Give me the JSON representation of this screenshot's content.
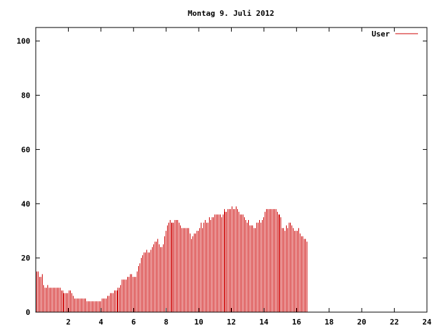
{
  "chart_data": {
    "type": "bar",
    "title": "Montag 9. Juli 2012",
    "xlabel": "",
    "ylabel": "",
    "xlim": [
      0,
      24
    ],
    "ylim": [
      0,
      105
    ],
    "x_ticks": [
      "2",
      "4",
      "6",
      "8",
      "10",
      "12",
      "14",
      "16",
      "18",
      "20",
      "22",
      "24"
    ],
    "y_ticks": [
      "0",
      "20",
      "40",
      "60",
      "80",
      "100"
    ],
    "grid": false,
    "legend_position": "top-right",
    "series": [
      {
        "name": "User",
        "color": "#cc0000",
        "x_step_hours": 0.0833,
        "values": [
          15,
          15,
          13,
          13,
          14,
          10,
          9,
          9,
          10,
          9,
          9,
          9,
          9,
          9,
          9,
          9,
          9,
          9,
          8,
          8,
          7,
          7,
          7,
          7,
          8,
          8,
          7,
          6,
          5,
          5,
          5,
          5,
          5,
          5,
          5,
          5,
          5,
          4,
          4,
          4,
          4,
          4,
          4,
          4,
          4,
          4,
          4,
          4,
          5,
          5,
          5,
          5,
          6,
          6,
          7,
          7,
          7,
          8,
          8,
          8,
          9,
          9,
          10,
          12,
          12,
          12,
          12,
          13,
          13,
          14,
          14,
          13,
          13,
          13,
          15,
          17,
          18,
          20,
          21,
          22,
          22,
          23,
          22,
          22,
          23,
          24,
          25,
          26,
          26,
          27,
          25,
          24,
          24,
          25,
          28,
          30,
          32,
          33,
          34,
          33,
          33,
          33,
          34,
          34,
          34,
          33,
          32,
          31,
          31,
          31,
          31,
          31,
          31,
          29,
          27,
          28,
          29,
          29,
          30,
          30,
          31,
          33,
          31,
          33,
          34,
          33,
          33,
          35,
          34,
          35,
          35,
          36,
          36,
          36,
          36,
          36,
          35,
          36,
          38,
          37,
          37,
          38,
          38,
          38,
          39,
          38,
          38,
          39,
          38,
          37,
          36,
          36,
          36,
          35,
          34,
          33,
          34,
          32,
          32,
          32,
          31,
          31,
          33,
          33,
          34,
          33,
          34,
          35,
          37,
          38,
          38,
          38,
          38,
          38,
          38,
          38,
          38,
          37,
          36,
          36,
          35,
          31,
          31,
          30,
          32,
          31,
          33,
          33,
          32,
          31,
          30,
          30,
          30,
          31,
          29,
          28,
          28,
          27,
          27,
          26
        ]
      }
    ]
  }
}
